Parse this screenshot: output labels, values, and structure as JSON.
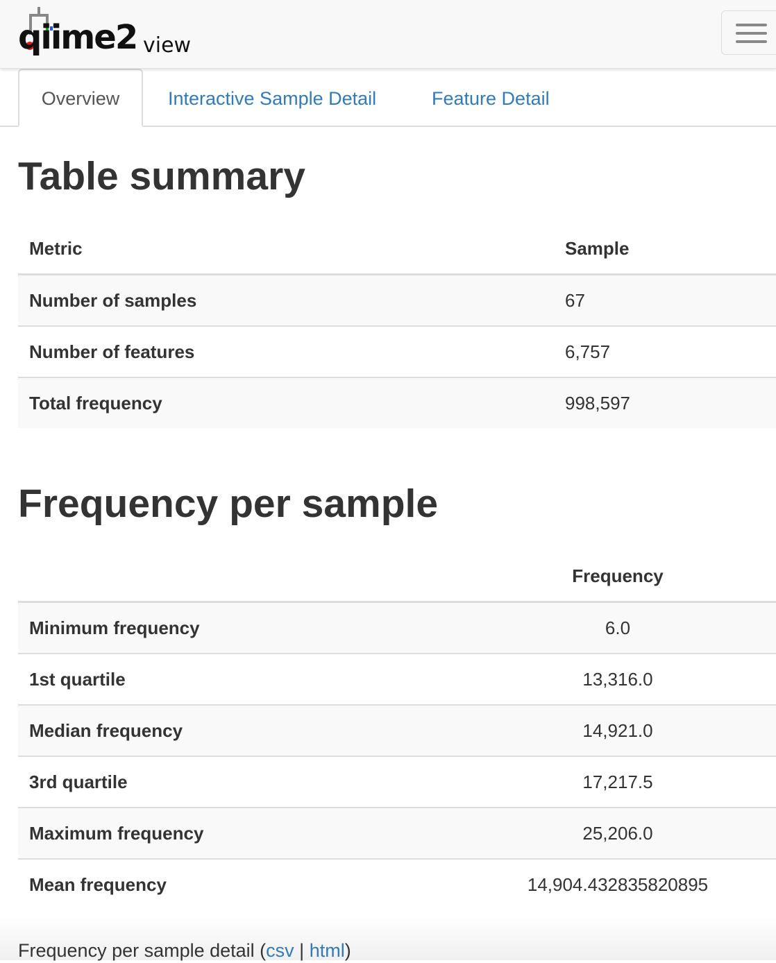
{
  "navbar": {
    "logo_text": "qiime2",
    "logo_suffix": "view",
    "menu_icon": "hamburger-menu-icon"
  },
  "tabs": [
    {
      "label": "Overview",
      "active": true
    },
    {
      "label": "Interactive Sample Detail",
      "active": false
    },
    {
      "label": "Feature Detail",
      "active": false
    }
  ],
  "table_summary": {
    "title": "Table summary",
    "headers": [
      "Metric",
      "Sample"
    ],
    "rows": [
      {
        "metric": "Number of samples",
        "value": "67"
      },
      {
        "metric": "Number of features",
        "value": "6,757"
      },
      {
        "metric": "Total frequency",
        "value": "998,597"
      }
    ]
  },
  "frequency_per_sample": {
    "title": "Frequency per sample",
    "headers": [
      "",
      "Frequency"
    ],
    "rows": [
      {
        "metric": "Minimum frequency",
        "value": "6.0"
      },
      {
        "metric": "1st quartile",
        "value": "13,316.0"
      },
      {
        "metric": "Median frequency",
        "value": "14,921.0"
      },
      {
        "metric": "3rd quartile",
        "value": "17,217.5"
      },
      {
        "metric": "Maximum frequency",
        "value": "25,206.0"
      },
      {
        "metric": "Mean frequency",
        "value": "14,904.432835820895"
      }
    ]
  },
  "detail_links": {
    "prefix": "Frequency per sample detail (",
    "csv": "csv",
    "separator": " | ",
    "html": "html",
    "suffix": ")"
  },
  "colors": {
    "link": "#337ab7",
    "text": "#333333",
    "navbar_bg": "#f8f8f8"
  }
}
